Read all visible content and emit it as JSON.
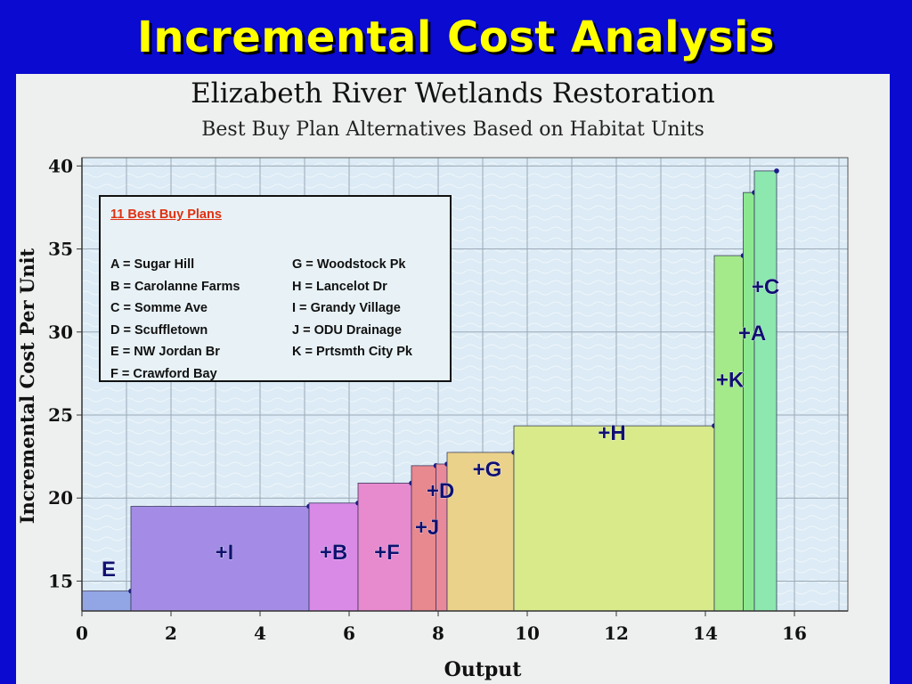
{
  "slide": {
    "title": "Incremental Cost Analysis"
  },
  "chart_data": {
    "type": "bar",
    "title": "Elizabeth River Wetlands Restoration",
    "subtitle": "Best Buy Plan Alternatives Based on Habitat Units",
    "xlabel": "Output",
    "ylabel": "Incremental Cost Per Unit",
    "xlim": [
      0,
      17.2
    ],
    "ylim": [
      13.2,
      40.5
    ],
    "xticks": [
      0,
      2,
      4,
      6,
      8,
      10,
      12,
      14,
      16
    ],
    "yticks": [
      15,
      20,
      25,
      30,
      35,
      40
    ],
    "grid": true,
    "bars": [
      {
        "label": "E",
        "x0": 0.0,
        "x1": 1.1,
        "value": 14.4,
        "color": "#92a6e6"
      },
      {
        "label": "+I",
        "x0": 1.1,
        "x1": 5.1,
        "value": 19.5,
        "color": "#a48ce6"
      },
      {
        "label": "+B",
        "x0": 5.1,
        "x1": 6.2,
        "value": 19.7,
        "color": "#d98ae6"
      },
      {
        "label": "+F",
        "x0": 6.2,
        "x1": 7.4,
        "value": 20.9,
        "color": "#e88ace"
      },
      {
        "label": "+J",
        "x0": 7.4,
        "x1": 7.95,
        "value": 21.95,
        "color": "#e8888f"
      },
      {
        "label": "+D",
        "x0": 7.95,
        "x1": 8.2,
        "value": 22.05,
        "color": "#e88a9a"
      },
      {
        "label": "+G",
        "x0": 8.2,
        "x1": 9.7,
        "value": 22.75,
        "color": "#ead28a"
      },
      {
        "label": "+H",
        "x0": 9.7,
        "x1": 14.2,
        "value": 24.35,
        "color": "#d8ea8a"
      },
      {
        "label": "+K",
        "x0": 14.2,
        "x1": 14.85,
        "value": 34.6,
        "color": "#a4ea8a"
      },
      {
        "label": "+A",
        "x0": 14.85,
        "x1": 15.1,
        "value": 38.4,
        "color": "#8ce890"
      },
      {
        "label": "+C",
        "x0": 15.1,
        "x1": 15.6,
        "value": 39.7,
        "color": "#8ce8ae"
      }
    ],
    "legend": {
      "heading": "11 Best Buy Plans",
      "left": [
        {
          "code": "A",
          "name": "Sugar Hill"
        },
        {
          "code": "B",
          "name": "Carolanne Farms"
        },
        {
          "code": "C",
          "name": "Somme Ave"
        },
        {
          "code": "D",
          "name": "Scuffletown"
        },
        {
          "code": "E",
          "name": "NW Jordan Br"
        },
        {
          "code": "F",
          "name": "Crawford Bay"
        }
      ],
      "right": [
        {
          "code": "G",
          "name": "Woodstock Pk"
        },
        {
          "code": "H",
          "name": "Lancelot Dr"
        },
        {
          "code": "I",
          "name": "Grandy Village"
        },
        {
          "code": "J",
          "name": "ODU Drainage"
        },
        {
          "code": "K",
          "name": "Prtsmth City Pk"
        }
      ]
    }
  }
}
